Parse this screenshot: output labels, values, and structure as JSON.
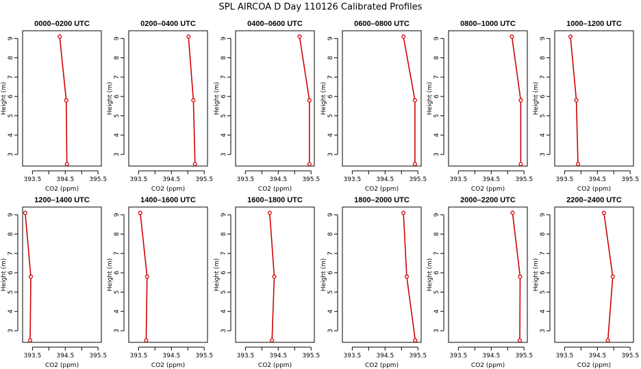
{
  "title": "SPL AIRCOA D  Day 110126  Calibrated Profiles",
  "chart_data": {
    "type": "line",
    "title": "SPL AIRCOA D  Day 110126  Calibrated Profiles",
    "xlabel": "CO2 (ppm)",
    "ylabel": "Height (m)",
    "xlim": [
      393.2,
      395.6
    ],
    "ylim": [
      2.4,
      9.4
    ],
    "xticks": [
      393.5,
      394.5,
      395.5
    ],
    "xticks_minor": [
      394,
      395
    ],
    "yticks": [
      3,
      4,
      5,
      6,
      7,
      8,
      9
    ],
    "series_color": "#d00000",
    "heights": [
      9.1,
      5.8,
      2.5
    ],
    "panels": [
      {
        "title": "0000–0200 UTC",
        "co2": [
          394.33,
          394.53,
          394.55
        ]
      },
      {
        "title": "0200–0400 UTC",
        "co2": [
          395.02,
          395.17,
          395.22
        ]
      },
      {
        "title": "0400–0600 UTC",
        "co2": [
          395.15,
          395.45,
          395.45
        ]
      },
      {
        "title": "0600–0800 UTC",
        "co2": [
          395.06,
          395.41,
          395.41
        ]
      },
      {
        "title": "0800–1000 UTC",
        "co2": [
          395.13,
          395.4,
          395.4
        ]
      },
      {
        "title": "1000–1200 UTC",
        "co2": [
          393.68,
          393.86,
          393.91
        ]
      },
      {
        "title": "1200–1400 UTC",
        "co2": [
          393.28,
          393.45,
          393.43
        ]
      },
      {
        "title": "1400–1600 UTC",
        "co2": [
          393.55,
          393.76,
          393.73
        ]
      },
      {
        "title": "1600–1800 UTC",
        "co2": [
          394.24,
          394.38,
          394.31
        ]
      },
      {
        "title": "1800–2000 UTC",
        "co2": [
          395.06,
          395.16,
          395.42
        ]
      },
      {
        "title": "2000–2200 UTC",
        "co2": [
          395.15,
          395.38,
          395.37
        ]
      },
      {
        "title": "2200–2400 UTC",
        "co2": [
          394.7,
          394.97,
          394.82
        ]
      }
    ]
  }
}
